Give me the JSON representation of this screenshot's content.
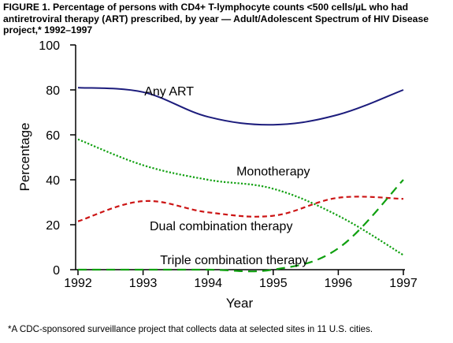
{
  "figure": {
    "title": "FIGURE 1. Percentage of persons with CD4+ T-lymphocyte counts <500 cells/µL who had antiretroviral therapy (ART) prescribed, by year — Adult/Adolescent Spectrum of HIV Disease project,* 1992–1997",
    "footnote": "*A CDC-sponsored surveillance project that collects data at selected sites in 11 U.S. cities."
  },
  "chart_data": {
    "type": "line",
    "title": "FIGURE 1. Percentage of persons with CD4+ T-lymphocyte counts <500 cells/µL who had antiretroviral therapy (ART) prescribed, by year — Adult/Adolescent Spectrum of HIV Disease project,* 1992–1997",
    "xlabel": "Year",
    "ylabel": "Percentage",
    "x": [
      1992,
      1993,
      1994,
      1995,
      1996,
      1997
    ],
    "x_tick_labels": [
      "1992",
      "1993",
      "1994",
      "1995",
      "1996",
      "1997"
    ],
    "xlim": [
      1992,
      1997
    ],
    "ylim": [
      0,
      100
    ],
    "y_ticks": [
      0,
      20,
      40,
      60,
      80,
      100
    ],
    "y_tick_labels": [
      "0",
      "20",
      "40",
      "60",
      "80",
      "100"
    ],
    "grid": false,
    "legend": "none (series labeled directly on plot)",
    "series": [
      {
        "name": "Any ART",
        "values": [
          81,
          79,
          68,
          64.5,
          69,
          80
        ],
        "color": "#1c1c7c",
        "line_style": "solid",
        "label_position": "above line, near 1993"
      },
      {
        "name": "Monotherapy",
        "values": [
          58,
          46.5,
          40,
          36,
          24,
          6.5
        ],
        "color": "#10a010",
        "line_style": "dotted",
        "label_position": "above line, near 1994.5"
      },
      {
        "name": "Dual combination therapy",
        "values": [
          21.5,
          30.5,
          25.5,
          24,
          32,
          31.5
        ],
        "color": "#cc1515",
        "line_style": "dashed",
        "label_position": "below line, near 1994"
      },
      {
        "name": "Triple combination therapy",
        "values": [
          0,
          0,
          0,
          0,
          9.5,
          40
        ],
        "color": "#10a010",
        "line_style": "long-dashed",
        "label_position": "above line, near 1994"
      }
    ]
  }
}
